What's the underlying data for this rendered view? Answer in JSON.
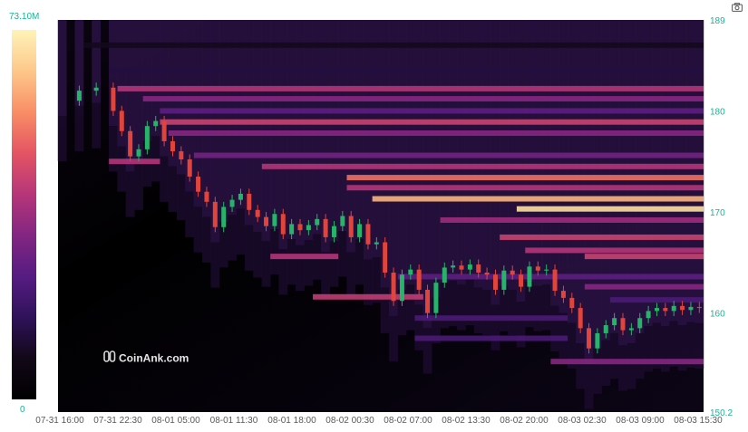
{
  "toolbar": {
    "camera_icon": "camera-icon"
  },
  "colorbar": {
    "max_label": "73.10M",
    "min_label": "0",
    "colors": [
      "#fff3b8",
      "#fdc88a",
      "#f98e66",
      "#e45463",
      "#b63679",
      "#832681",
      "#561c82",
      "#2f125a",
      "#120818",
      "#000000"
    ]
  },
  "watermark": {
    "text": "CoinAnk.com",
    "icon": "coinank-logo-icon"
  },
  "chart_data": {
    "type": "heatmap",
    "title": "",
    "ylim": [
      150.2,
      189
    ],
    "y_ticks": [
      "150.2",
      "160",
      "170",
      "180",
      "189"
    ],
    "x_ticks": [
      "07-31 16:00",
      "07-31 22:30",
      "08-01 05:00",
      "08-01 11:30",
      "08-01 18:00",
      "08-02 00:30",
      "08-02 07:00",
      "08-02 13:30",
      "08-02 20:00",
      "08-03 02:30",
      "08-03 09:00",
      "08-03 15:30"
    ],
    "colorscale": {
      "min": 0,
      "max": "73.10M"
    },
    "price_path": [
      [
        0,
        181.0
      ],
      [
        2,
        182.0
      ],
      [
        4,
        182.3
      ],
      [
        6,
        180.0
      ],
      [
        7,
        178.0
      ],
      [
        8,
        175.5
      ],
      [
        9,
        176.2
      ],
      [
        10,
        178.5
      ],
      [
        11,
        179.0
      ],
      [
        12,
        177.0
      ],
      [
        13,
        176.0
      ],
      [
        14,
        175.2
      ],
      [
        15,
        173.5
      ],
      [
        16,
        172.0
      ],
      [
        17,
        171.0
      ],
      [
        18,
        168.5
      ],
      [
        19,
        170.5
      ],
      [
        20,
        171.2
      ],
      [
        21,
        171.8
      ],
      [
        22,
        170.2
      ],
      [
        23,
        169.5
      ],
      [
        24,
        168.6
      ],
      [
        25,
        169.8
      ],
      [
        26,
        167.8
      ],
      [
        27,
        168.8
      ],
      [
        28,
        168.2
      ],
      [
        29,
        168.7
      ],
      [
        30,
        169.3
      ],
      [
        31,
        167.5
      ],
      [
        32,
        168.6
      ],
      [
        33,
        169.6
      ],
      [
        34,
        167.5
      ],
      [
        35,
        168.8
      ],
      [
        36,
        166.8
      ],
      [
        37,
        167.0
      ],
      [
        38,
        164.0
      ],
      [
        39,
        161.2
      ],
      [
        40,
        163.8
      ],
      [
        41,
        164.3
      ],
      [
        42,
        162.3
      ],
      [
        43,
        160.0
      ],
      [
        44,
        163.0
      ],
      [
        45,
        164.5
      ],
      [
        46,
        164.7
      ],
      [
        47,
        164.3
      ],
      [
        48,
        164.8
      ],
      [
        49,
        164.0
      ],
      [
        50,
        163.8
      ],
      [
        51,
        162.3
      ],
      [
        52,
        164.2
      ],
      [
        53,
        163.8
      ],
      [
        54,
        162.6
      ],
      [
        55,
        164.6
      ],
      [
        56,
        164.2
      ],
      [
        57,
        164.3
      ],
      [
        58,
        162.2
      ],
      [
        59,
        161.5
      ],
      [
        60,
        160.5
      ],
      [
        61,
        158.5
      ],
      [
        62,
        156.5
      ],
      [
        63,
        158.0
      ],
      [
        64,
        158.8
      ],
      [
        65,
        159.5
      ],
      [
        66,
        158.3
      ],
      [
        67,
        158.5
      ],
      [
        68,
        159.5
      ],
      [
        69,
        160.2
      ],
      [
        70,
        160.5
      ],
      [
        71,
        160.2
      ],
      [
        72,
        160.7
      ],
      [
        73,
        160.3
      ],
      [
        74,
        160.6
      ],
      [
        75,
        160.5
      ]
    ],
    "liquidity_bands": [
      {
        "price": 182.2,
        "level": 0.55,
        "from": 7,
        "to": 76
      },
      {
        "price": 181.2,
        "level": 0.45,
        "from": 10,
        "to": 76
      },
      {
        "price": 180.0,
        "level": 0.35,
        "from": 12,
        "to": 76
      },
      {
        "price": 178.9,
        "level": 0.6,
        "from": 12,
        "to": 76
      },
      {
        "price": 177.8,
        "level": 0.45,
        "from": 13,
        "to": 76
      },
      {
        "price": 175.6,
        "level": 0.4,
        "from": 16,
        "to": 76
      },
      {
        "price": 174.5,
        "level": 0.55,
        "from": 24,
        "to": 76
      },
      {
        "price": 173.4,
        "level": 0.72,
        "from": 34,
        "to": 76
      },
      {
        "price": 172.4,
        "level": 0.55,
        "from": 34,
        "to": 76
      },
      {
        "price": 171.3,
        "level": 0.85,
        "from": 37,
        "to": 76
      },
      {
        "price": 170.3,
        "level": 0.95,
        "from": 54,
        "to": 76
      },
      {
        "price": 169.2,
        "level": 0.5,
        "from": 45,
        "to": 76
      },
      {
        "price": 167.5,
        "level": 0.6,
        "from": 52,
        "to": 76
      },
      {
        "price": 166.2,
        "level": 0.55,
        "from": 55,
        "to": 76
      },
      {
        "price": 165.6,
        "level": 0.6,
        "from": 62,
        "to": 76
      },
      {
        "price": 163.6,
        "level": 0.35,
        "from": 40,
        "to": 76
      },
      {
        "price": 162.6,
        "level": 0.45,
        "from": 62,
        "to": 76
      },
      {
        "price": 161.3,
        "level": 0.3,
        "from": 65,
        "to": 76
      },
      {
        "price": 161.6,
        "level": 0.58,
        "from": 30,
        "to": 43
      },
      {
        "price": 165.6,
        "level": 0.55,
        "from": 25,
        "to": 33
      },
      {
        "price": 159.5,
        "level": 0.3,
        "from": 42,
        "to": 60
      },
      {
        "price": 157.5,
        "level": 0.3,
        "from": 42,
        "to": 60
      },
      {
        "price": 155.2,
        "level": 0.45,
        "from": 58,
        "to": 76
      },
      {
        "price": 175.0,
        "level": 0.55,
        "from": 6,
        "to": 12
      },
      {
        "price": 184.0,
        "level": 0.18,
        "from": 6,
        "to": 76
      },
      {
        "price": 186.5,
        "level": 0.12,
        "from": 3,
        "to": 76
      }
    ]
  }
}
